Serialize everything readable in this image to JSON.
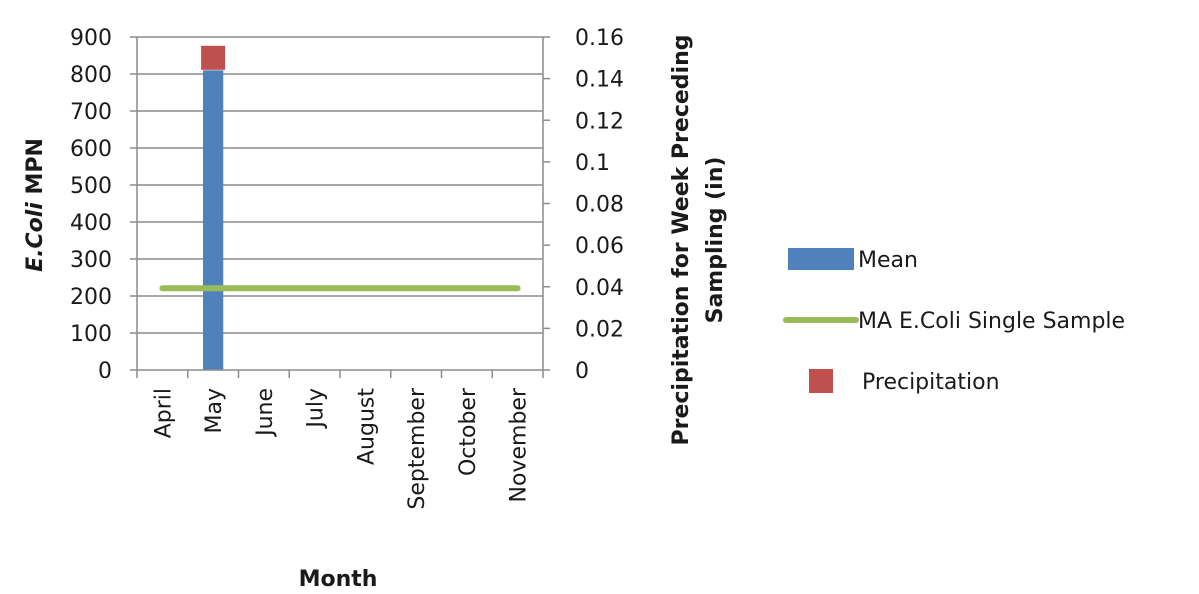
{
  "chart_data": {
    "type": "bar",
    "categories": [
      "April",
      "May",
      "June",
      "July",
      "August",
      "September",
      "October",
      "November"
    ],
    "xlabel": "Month",
    "ylabel_italic": "E.Coli",
    "ylabel_rest": " MPN",
    "y2label_line1": "Precipitation for Week Preceding",
    "y2label_line2": "Sampling (in)",
    "ylim": [
      0,
      900
    ],
    "yticks": [
      0,
      100,
      200,
      300,
      400,
      500,
      600,
      700,
      800,
      900
    ],
    "y2lim": [
      0,
      0.16
    ],
    "y2ticks": [
      "0",
      "0.02",
      "0.04",
      "0.06",
      "0.08",
      "0.1",
      "0.12",
      "0.14",
      "0.16"
    ],
    "grid": true,
    "legend_position": "right",
    "series": [
      {
        "name": "Mean",
        "kind": "bar",
        "axis": "left",
        "color": "#4f81bd",
        "values": [
          null,
          810,
          null,
          null,
          null,
          null,
          null,
          null
        ]
      },
      {
        "name": "MA E.Coli Single Sample",
        "kind": "line",
        "axis": "left",
        "color": "#9bbb59",
        "values": [
          221,
          221,
          221,
          221,
          221,
          221,
          221,
          221
        ]
      },
      {
        "name": "Precipitation",
        "kind": "scatter",
        "axis": "right",
        "color": "#c0504d",
        "values": [
          null,
          0.15,
          null,
          null,
          null,
          null,
          null,
          null
        ]
      }
    ]
  }
}
